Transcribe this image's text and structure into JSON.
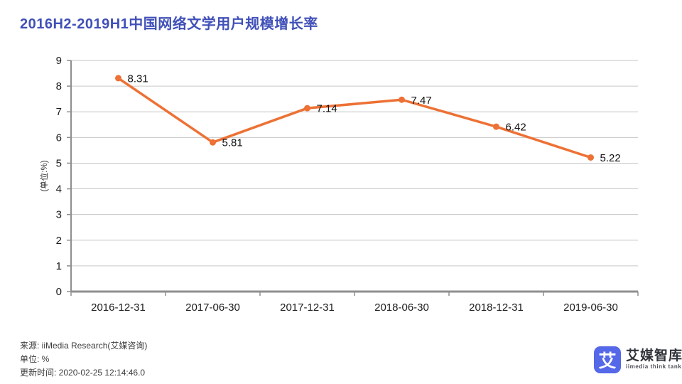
{
  "title": {
    "text": "2016H2-2019H1中国网络文学用户规模增长率",
    "color": "#4050b8"
  },
  "chart_data": {
    "type": "line",
    "title": "2016H2-2019H1中国网络文学用户规模增长率",
    "categories": [
      "2016-12-31",
      "2017-06-30",
      "2017-12-31",
      "2018-06-30",
      "2018-12-31",
      "2019-06-30"
    ],
    "values": [
      8.31,
      5.81,
      7.14,
      7.47,
      6.42,
      5.22
    ],
    "point_labels": [
      "8.31",
      "5.81",
      "7.14",
      "7.47",
      "6.42",
      "5.22"
    ],
    "xlabel": "",
    "ylabel": "(单位:%)",
    "ylim": [
      0,
      9
    ],
    "yticks": [
      0,
      1,
      2,
      3,
      4,
      5,
      6,
      7,
      8,
      9
    ],
    "grid": true,
    "legend_position": "none",
    "line_color": "#ed7135",
    "marker_color": "#ed7135",
    "gridline_color": "#c6c6c6",
    "axis_color": "#8f8f8f",
    "tick_label_color": "#1c1c1c",
    "point_label_color": "#111111"
  },
  "footer": {
    "source": "来源: iiMedia Research(艾媒咨询)",
    "unit": "单位: %",
    "updated": "更新时间: 2020-02-25 12:14:46.0"
  },
  "logo": {
    "icon_char": "艾",
    "icon_color": "#5468e8",
    "name": "艾媒智库",
    "subtitle": "iimedia think tank"
  }
}
